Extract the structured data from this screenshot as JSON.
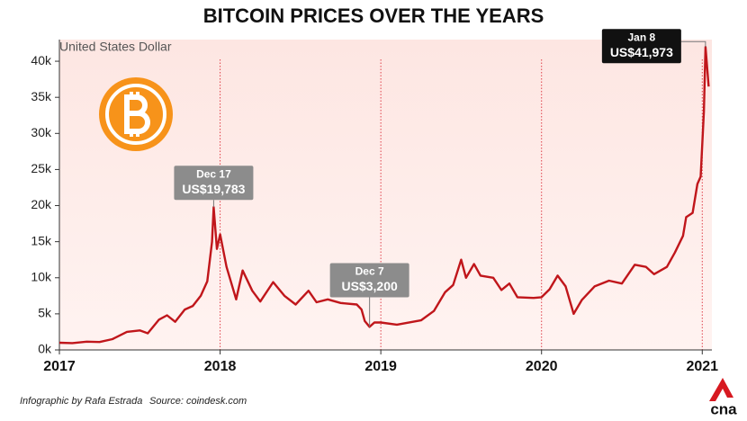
{
  "chart_data": {
    "type": "line",
    "title": "BITCOIN PRICES OVER THE YEARS",
    "y_label": "United States Dollar",
    "color": "#c0161b",
    "x": [
      2017.0,
      2017.08,
      2017.17,
      2017.25,
      2017.33,
      2017.42,
      2017.5,
      2017.55,
      2017.62,
      2017.67,
      2017.72,
      2017.78,
      2017.83,
      2017.88,
      2017.92,
      2017.95,
      2017.96,
      2017.98,
      2018.0,
      2018.04,
      2018.1,
      2018.14,
      2018.2,
      2018.25,
      2018.33,
      2018.4,
      2018.47,
      2018.55,
      2018.6,
      2018.67,
      2018.75,
      2018.85,
      2018.88,
      2018.9,
      2018.93,
      2018.96,
      2019.0,
      2019.1,
      2019.2,
      2019.25,
      2019.33,
      2019.4,
      2019.45,
      2019.5,
      2019.53,
      2019.58,
      2019.62,
      2019.7,
      2019.75,
      2019.8,
      2019.85,
      2019.95,
      2020.0,
      2020.05,
      2020.1,
      2020.15,
      2020.2,
      2020.25,
      2020.33,
      2020.42,
      2020.5,
      2020.58,
      2020.65,
      2020.7,
      2020.78,
      2020.83,
      2020.88,
      2020.9,
      2020.94,
      2020.97,
      2020.99,
      2021.01,
      2021.02,
      2021.04
    ],
    "values": [
      1000,
      950,
      1150,
      1100,
      1500,
      2500,
      2700,
      2300,
      4200,
      4800,
      3900,
      5600,
      6100,
      7500,
      9500,
      15000,
      19783,
      14000,
      16000,
      11500,
      7000,
      11000,
      8200,
      6700,
      9400,
      7500,
      6300,
      8200,
      6600,
      7000,
      6500,
      6300,
      5600,
      4000,
      3200,
      3800,
      3800,
      3500,
      3900,
      4100,
      5400,
      8000,
      9000,
      12500,
      10000,
      11900,
      10300,
      10000,
      8300,
      9200,
      7300,
      7200,
      7300,
      8400,
      10300,
      8800,
      5000,
      6900,
      8800,
      9600,
      9200,
      11800,
      11500,
      10500,
      11500,
      13500,
      15800,
      18400,
      19000,
      23000,
      24000,
      33000,
      41973,
      36500
    ],
    "xlim": [
      2017,
      2021.06
    ],
    "xticks": [
      2017,
      2018,
      2019,
      2020,
      2021
    ],
    "xgrid": true,
    "ylim": [
      0,
      43000
    ],
    "yticks": [
      {
        "value": 0,
        "label": "0k"
      },
      {
        "value": 5000,
        "label": "5k"
      },
      {
        "value": 10000,
        "label": "10k"
      },
      {
        "value": 15000,
        "label": "15k"
      },
      {
        "value": 20000,
        "label": "20k"
      },
      {
        "value": 25000,
        "label": "25k"
      },
      {
        "value": 30000,
        "label": "30k"
      },
      {
        "value": 35000,
        "label": "35k"
      },
      {
        "value": 40000,
        "label": "40k"
      }
    ],
    "annotations": [
      {
        "x": 2017.96,
        "y": 19783,
        "date": "Dec 17",
        "label": "US$19,783",
        "color": "#8c8c8c"
      },
      {
        "x": 2018.93,
        "y": 3200,
        "date": "Dec 7",
        "label": "US$3,200",
        "color": "#8c8c8c"
      },
      {
        "x": 2021.02,
        "y": 41973,
        "date": "Jan 8",
        "label": "US$41,973",
        "color": "#111111"
      }
    ]
  },
  "footer": {
    "credit": "Infographic by Rafa Estrada",
    "source": "Source: coindesk.com",
    "logo": "cna"
  }
}
